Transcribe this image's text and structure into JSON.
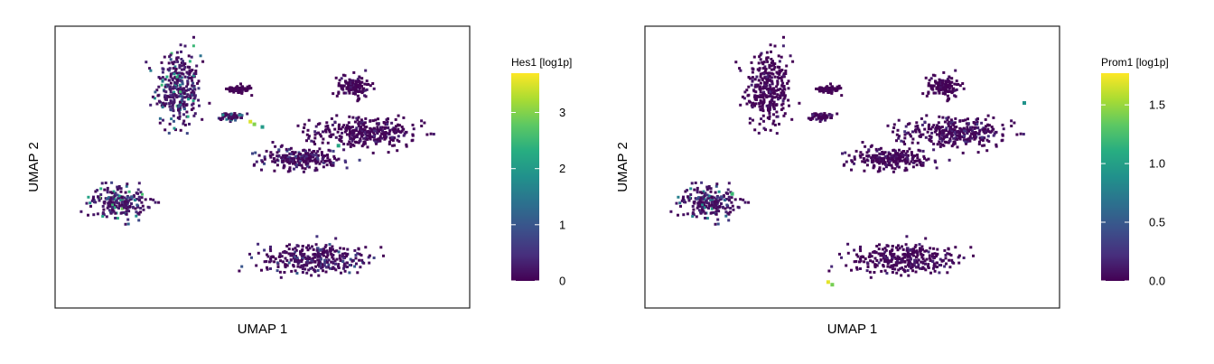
{
  "chart_data": [
    {
      "type": "scatter",
      "xlabel": "UMAP 1",
      "ylabel": "UMAP 2",
      "colorbar": {
        "title": "Hes1 [log1p]",
        "colormap": "viridis",
        "range": [
          0,
          3.7
        ],
        "ticks": [
          0,
          1,
          2,
          3
        ],
        "tick_labels": [
          "0",
          "1",
          "2",
          "3"
        ]
      },
      "grid": false,
      "clusters": [
        {
          "x": 0.29,
          "y": 0.79,
          "spread": [
            0.04,
            0.1
          ],
          "level": 0.35
        },
        {
          "x": 0.42,
          "y": 0.69,
          "spread": [
            0.02,
            0.01
          ],
          "level": 0.25
        },
        {
          "x": 0.6,
          "y": 0.53,
          "spread": [
            0.07,
            0.03
          ],
          "level": 0.12
        },
        {
          "x": 0.76,
          "y": 0.63,
          "spread": [
            0.1,
            0.04
          ],
          "level": 0.06
        },
        {
          "x": 0.14,
          "y": 0.37,
          "spread": [
            0.05,
            0.04
          ],
          "level": 0.4
        },
        {
          "x": 0.63,
          "y": 0.16,
          "spread": [
            0.1,
            0.04
          ],
          "level": 0.15
        },
        {
          "x": 0.73,
          "y": 0.8,
          "spread": [
            0.03,
            0.03
          ],
          "level": 0.05
        },
        {
          "x": 0.44,
          "y": 0.79,
          "spread": [
            0.02,
            0.01
          ],
          "level": 0.02
        }
      ],
      "highlights": [
        {
          "x": 0.47,
          "y": 0.67,
          "value": 3.5
        },
        {
          "x": 0.48,
          "y": 0.66,
          "value": 3.0
        },
        {
          "x": 0.69,
          "y": 0.58,
          "value": 2.2
        },
        {
          "x": 0.5,
          "y": 0.65,
          "value": 2.0
        }
      ]
    },
    {
      "type": "scatter",
      "xlabel": "UMAP 1",
      "ylabel": "UMAP 2",
      "colorbar": {
        "title": "Prom1 [log1p]",
        "colormap": "viridis",
        "range": [
          0,
          1.77
        ],
        "ticks": [
          0,
          0.5,
          1.0,
          1.5
        ],
        "tick_labels": [
          "0.0",
          "0.5",
          "1.0",
          "1.5"
        ]
      },
      "grid": false,
      "clusters": [
        {
          "x": 0.29,
          "y": 0.79,
          "spread": [
            0.04,
            0.1
          ],
          "level": 0.05
        },
        {
          "x": 0.42,
          "y": 0.69,
          "spread": [
            0.02,
            0.01
          ],
          "level": 0.05
        },
        {
          "x": 0.6,
          "y": 0.53,
          "spread": [
            0.07,
            0.03
          ],
          "level": 0.05
        },
        {
          "x": 0.76,
          "y": 0.63,
          "spread": [
            0.1,
            0.04
          ],
          "level": 0.08
        },
        {
          "x": 0.14,
          "y": 0.37,
          "spread": [
            0.05,
            0.04
          ],
          "level": 0.3
        },
        {
          "x": 0.63,
          "y": 0.16,
          "spread": [
            0.1,
            0.04
          ],
          "level": 0.06
        },
        {
          "x": 0.73,
          "y": 0.8,
          "spread": [
            0.03,
            0.03
          ],
          "level": 0.03
        },
        {
          "x": 0.44,
          "y": 0.79,
          "spread": [
            0.02,
            0.01
          ],
          "level": 0.02
        }
      ],
      "highlights": [
        {
          "x": 0.44,
          "y": 0.07,
          "value": 1.7
        },
        {
          "x": 0.45,
          "y": 0.06,
          "value": 1.4
        },
        {
          "x": 0.2,
          "y": 0.4,
          "value": 1.2
        },
        {
          "x": 0.93,
          "y": 0.74,
          "value": 0.9
        }
      ]
    }
  ]
}
